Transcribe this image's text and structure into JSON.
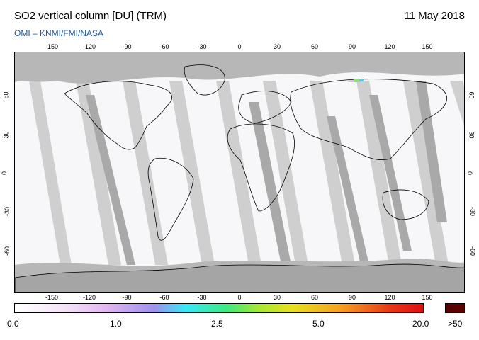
{
  "header": {
    "title": "SO2 vertical column [DU] (TRM)",
    "date": "11 May 2018",
    "credit": "OMI  –  KNMI/FMI/NASA"
  },
  "axes": {
    "lon_ticks": [
      "-150",
      "-120",
      "-90",
      "-60",
      "-30",
      "0",
      "30",
      "60",
      "90",
      "120",
      "150"
    ],
    "lat_ticks": [
      "60",
      "30",
      "0",
      "-30",
      "-60"
    ]
  },
  "colorbar": {
    "labels": [
      "0.0",
      "1.0",
      "2.5",
      "5.0",
      "20.0"
    ],
    "overflow_label": ">50",
    "stops": [
      "#ffffff",
      "#e8c8f0",
      "#9a8cf0",
      "#38e8f8",
      "#60e070",
      "#e8e020",
      "#f08020",
      "#e81818"
    ],
    "overflow_color": "#5a0000"
  },
  "map": {
    "projection": "equirectangular",
    "lon_range": [
      -180,
      180
    ],
    "lat_range": [
      -90,
      90
    ],
    "no_data_color": "#b7b7b7",
    "background_value_color": "#ffffff",
    "hotspot": {
      "lon": 97,
      "lat": 69,
      "color": "#6ad0a0"
    }
  }
}
